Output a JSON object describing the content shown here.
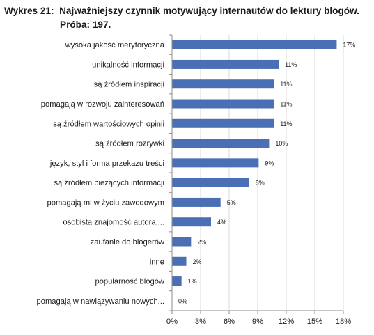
{
  "figure": {
    "label": "Wykres 21:",
    "title_line1": "Najważniejszy czynnik motywujący internautów do lektury blogów.",
    "title_line2": "Próba: 197."
  },
  "chart_data": {
    "type": "bar",
    "orientation": "horizontal",
    "title": "Najważniejszy czynnik motywujący internautów do lektury blogów.",
    "categories": [
      "wysoka jakość merytoryczna",
      "unikalność informacji",
      "są źródłem inspiracji",
      "pomagają w rozwoju zainteresowań",
      "są źródłem wartościowych opinii",
      "są źródłem rozrywki",
      "język, styl i forma przekazu treści",
      "są źródłem bieżących informacji",
      "pomagają mi w życiu zawodowym",
      "osobista znajomość autora,...",
      "zaufanie do blogerów",
      "inne",
      "popularność blogów",
      "pomagają w nawiązywaniu nowych..."
    ],
    "values": [
      17.3,
      11.2,
      10.7,
      10.7,
      10.7,
      10.2,
      9.1,
      8.1,
      5.1,
      4.1,
      2.0,
      1.5,
      1.0,
      0
    ],
    "data_labels": [
      "17%",
      "11%",
      "11%",
      "11%",
      "11%",
      "10%",
      "9%",
      "8%",
      "5%",
      "4%",
      "2%",
      "2%",
      "1%",
      "0%"
    ],
    "xlim": [
      0,
      18
    ],
    "xticks": [
      0,
      3,
      6,
      9,
      12,
      15,
      18
    ],
    "xtick_labels": [
      "0%",
      "3%",
      "6%",
      "9%",
      "12%",
      "15%",
      "18%"
    ],
    "bar_color": "#4a6fb5",
    "grid": true
  }
}
